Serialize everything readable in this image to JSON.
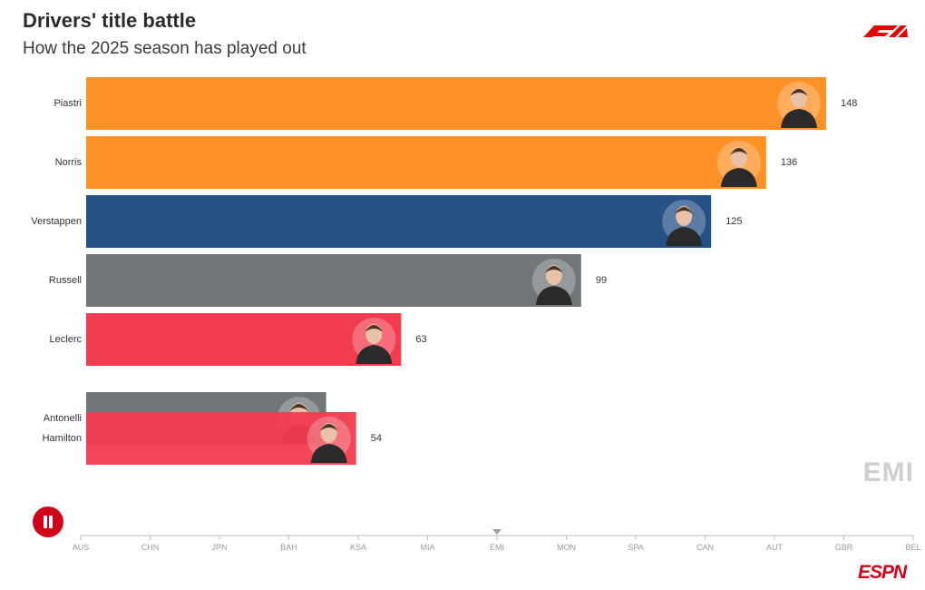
{
  "header": {
    "title": "Drivers' title battle",
    "subtitle": "How the 2025 season has played out"
  },
  "current_race": "EMI",
  "colors": {
    "mclaren": "#ff9226",
    "redbull": "#255187",
    "mercedes": "#717779",
    "ferrari": "#f23c4f",
    "accent": "#d0021b"
  },
  "icons": [
    "f1-logo-icon",
    "espn-logo-icon",
    "pause-icon",
    "driver-avatar-icon"
  ],
  "chart_data": {
    "type": "bar",
    "orientation": "horizontal",
    "title": "Drivers' title battle",
    "subtitle": "How the 2025 season has played out",
    "categories": [
      "Piastri",
      "Norris",
      "Verstappen",
      "Russell",
      "Leclerc",
      "Antonelli",
      "Hamilton"
    ],
    "values": [
      148,
      136,
      125,
      99,
      63,
      48,
      54
    ],
    "bar_colors": [
      "#ff9226",
      "#ff9226",
      "#255187",
      "#717779",
      "#f23c4f",
      "#717779",
      "#f23c4f"
    ],
    "xlim": [
      0,
      148
    ],
    "timeline": [
      "AUS",
      "CHN",
      "JPN",
      "BAH",
      "KSA",
      "MIA",
      "EMI",
      "MON",
      "SPA",
      "CAN",
      "AUT",
      "GBR",
      "BEL"
    ],
    "timeline_current": "EMI",
    "grid": false
  }
}
